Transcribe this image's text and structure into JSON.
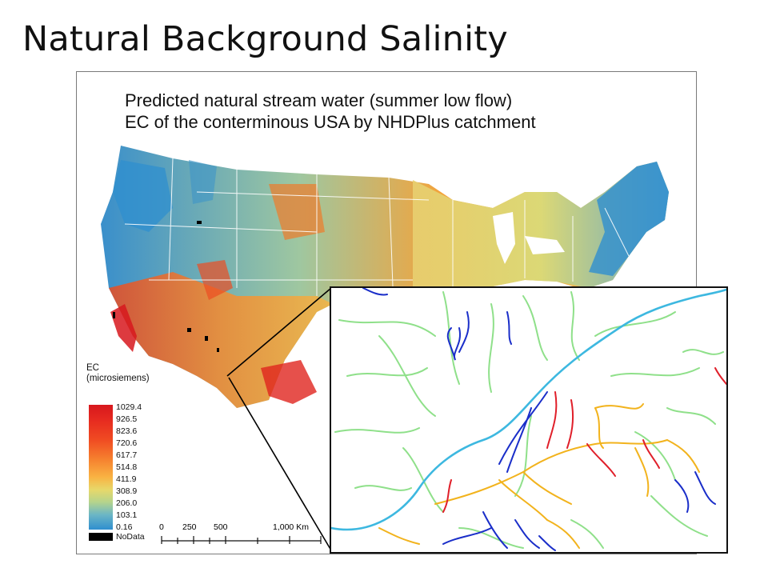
{
  "slide": {
    "title": "Natural Background Salinity"
  },
  "map": {
    "title_line1": "Predicted natural stream water (summer low flow)",
    "title_line2": "EC of the conterminous USA by NHDPlus catchment"
  },
  "legend": {
    "title_line1": "EC",
    "title_line2": "(microsiemens)",
    "ticks": [
      "1029.4",
      "926.5",
      "823.6",
      "720.6",
      "617.7",
      "514.8",
      "411.9",
      "308.9",
      "206.0",
      "103.1",
      "0.16"
    ],
    "nodata": "NoData",
    "colors": {
      "high": "#d7171d",
      "mid": "#f9b343",
      "low": "#2f8fcf",
      "nodata": "#000000"
    }
  },
  "scale": {
    "labels": [
      "0",
      "250",
      "500",
      "1,000 Km"
    ]
  },
  "inset": {
    "stream_colors": {
      "low": "#1a2ec9",
      "mid_low": "#8fe08a",
      "main": "#3db8e0",
      "mid_high": "#f2b31d",
      "high": "#e01f2a"
    }
  }
}
